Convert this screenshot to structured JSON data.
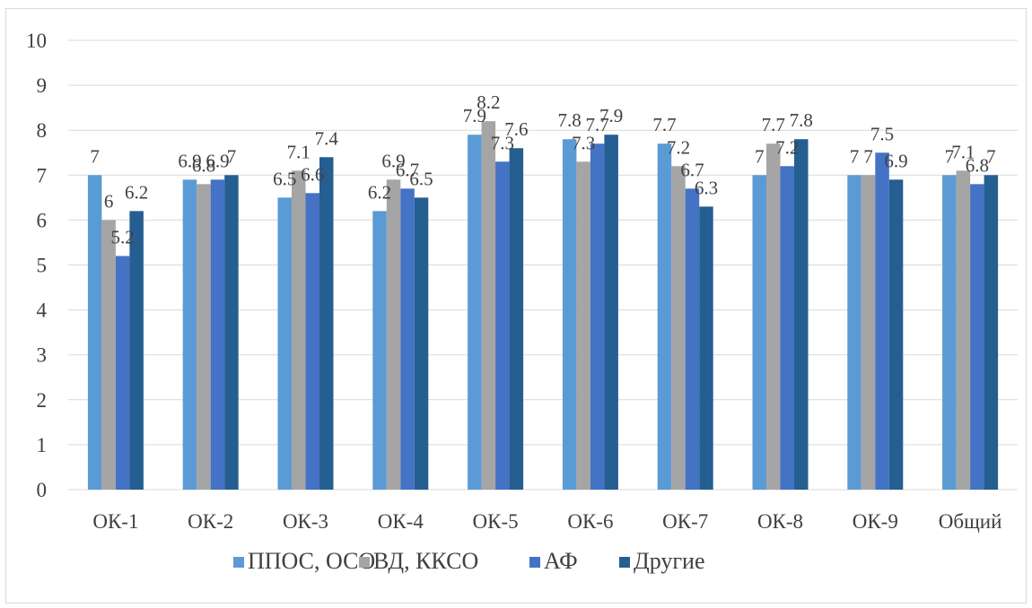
{
  "chart_data": {
    "type": "bar",
    "title": "",
    "xlabel": "",
    "ylabel": "",
    "ylim": [
      0,
      10
    ],
    "yticks": [
      "0",
      "1",
      "2",
      "3",
      "4",
      "5",
      "6",
      "7",
      "8",
      "9",
      "10"
    ],
    "grid": true,
    "legend_position": "bottom",
    "categories": [
      "ОК-1",
      "ОК-2",
      "ОК-3",
      "ОК-4",
      "ОК-5",
      "ОК-6",
      "ОК-7",
      "ОК-8",
      "ОК-9",
      "Общий"
    ],
    "series": [
      {
        "name": "ППОС, ОСО",
        "color": "#5B9BD5",
        "values": [
          7,
          6.9,
          6.5,
          6.2,
          7.9,
          7.8,
          7.7,
          7,
          7,
          7
        ]
      },
      {
        "name": "ВД, ККСО",
        "color": "#A5A5A5",
        "values": [
          6,
          6.8,
          7.1,
          6.9,
          8.2,
          7.3,
          7.2,
          7.7,
          7,
          7.1
        ]
      },
      {
        "name": "АФ",
        "color": "#4472C4",
        "values": [
          5.2,
          6.9,
          6.6,
          6.7,
          7.3,
          7.7,
          6.7,
          7.2,
          7.5,
          6.8
        ]
      },
      {
        "name": "Другие",
        "color": "#255E91",
        "values": [
          6.2,
          7,
          7.4,
          6.5,
          7.6,
          7.9,
          6.3,
          7.8,
          6.9,
          7
        ]
      }
    ],
    "data_labels": [
      [
        "7",
        "6",
        "5.2",
        "6.2"
      ],
      [
        "6.9",
        "6.8",
        "6.9",
        "7"
      ],
      [
        "6.5",
        "7.1",
        "6.6",
        "7.4"
      ],
      [
        "6.2",
        "6.9",
        "6.7",
        "6.5"
      ],
      [
        "7.9",
        "8.2",
        "7.3",
        "7.6"
      ],
      [
        "7.8",
        "7.3",
        "7.7",
        "7.9"
      ],
      [
        "7.7",
        "7.2",
        "6.7",
        "6.3"
      ],
      [
        "7",
        "7.7",
        "7.2",
        "7.8"
      ],
      [
        "7",
        "7",
        "7.5",
        "6.9"
      ],
      [
        "7",
        "7.1",
        "6.8",
        "7"
      ]
    ],
    "gridline_color": "#d9d9d9",
    "text_color": "#404040"
  }
}
